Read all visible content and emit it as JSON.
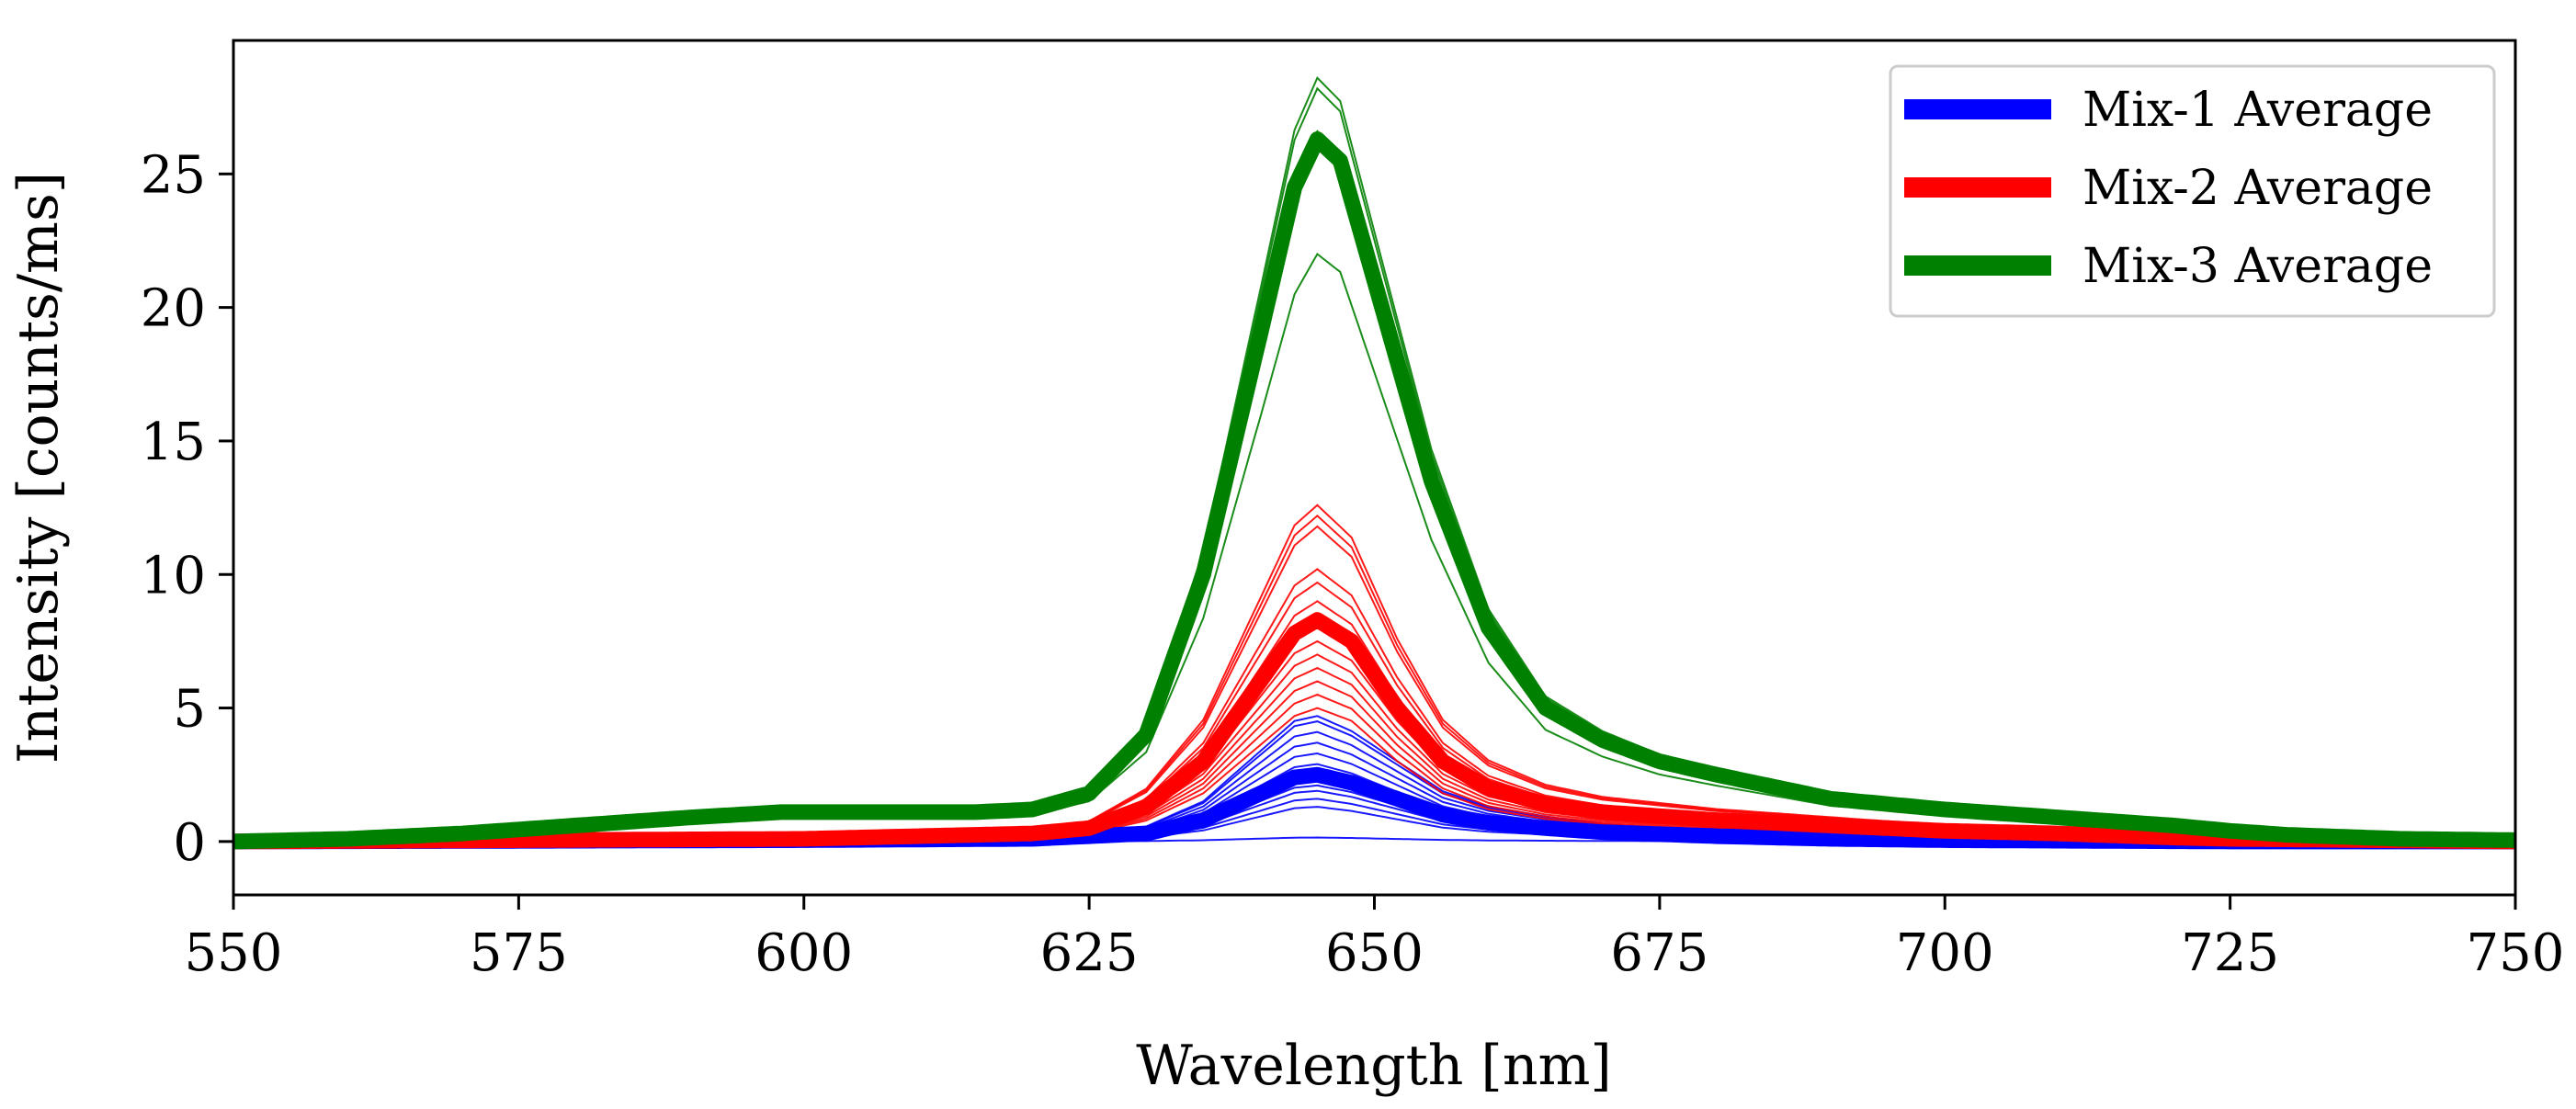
{
  "chart_data": {
    "type": "line",
    "xlabel": "Wavelength [nm]",
    "ylabel": "Intensity [counts/ms]",
    "xlim": [
      550,
      750
    ],
    "ylim": [
      -2,
      30
    ],
    "xticks": [
      550,
      575,
      600,
      625,
      650,
      675,
      700,
      725,
      750
    ],
    "yticks": [
      0,
      5,
      10,
      15,
      20,
      25
    ],
    "grid": false,
    "legend_position": "top-right",
    "colors": {
      "Mix-1": "#0000ff",
      "Mix-2": "#ff0000",
      "Mix-3": "#008000"
    },
    "series": [
      {
        "name": "Mix-1 Average",
        "color": "#0000ff",
        "x": [
          550,
          600,
          620,
          630,
          635,
          640,
          643,
          645,
          648,
          652,
          656,
          660,
          665,
          670,
          680,
          690,
          700,
          725,
          750
        ],
        "values": [
          0.0,
          0.05,
          0.1,
          0.3,
          0.8,
          1.8,
          2.4,
          2.5,
          2.2,
          1.6,
          1.0,
          0.7,
          0.5,
          0.35,
          0.2,
          0.1,
          0.05,
          0.0,
          0.0
        ]
      },
      {
        "name": "Mix-2 Average",
        "color": "#ff0000",
        "x": [
          550,
          600,
          620,
          625,
          630,
          635,
          640,
          643,
          645,
          648,
          652,
          656,
          660,
          665,
          670,
          680,
          690,
          700,
          710,
          720,
          725,
          750
        ],
        "values": [
          0.0,
          0.1,
          0.3,
          0.5,
          1.3,
          3.0,
          6.0,
          7.8,
          8.3,
          7.5,
          5.0,
          3.0,
          2.0,
          1.4,
          1.1,
          0.8,
          0.6,
          0.4,
          0.3,
          0.15,
          0.1,
          0.0
        ]
      },
      {
        "name": "Mix-3 Average",
        "color": "#008000",
        "x": [
          550,
          560,
          570,
          580,
          590,
          598,
          605,
          615,
          620,
          625,
          630,
          635,
          640,
          643,
          645,
          647,
          650,
          655,
          660,
          665,
          670,
          675,
          680,
          690,
          700,
          710,
          720,
          725,
          730,
          740,
          750
        ],
        "values": [
          0.0,
          0.1,
          0.3,
          0.6,
          0.9,
          1.1,
          1.1,
          1.1,
          1.2,
          1.8,
          4.0,
          10.0,
          19.0,
          24.5,
          26.3,
          25.5,
          21.0,
          13.5,
          8.0,
          5.0,
          3.8,
          3.0,
          2.5,
          1.6,
          1.2,
          0.9,
          0.6,
          0.4,
          0.25,
          0.1,
          0.05
        ]
      }
    ],
    "individual_scans": [
      {
        "series": "Mix-1",
        "peaks": [
          0.15,
          1.3,
          1.6,
          1.9,
          2.1,
          2.4,
          2.6,
          2.9,
          3.3,
          3.7,
          4.1,
          4.5,
          4.7
        ]
      },
      {
        "series": "Mix-2",
        "peaks": [
          5.0,
          5.5,
          6.0,
          6.5,
          7.0,
          7.5,
          8.0,
          8.5,
          9.0,
          9.7,
          10.2,
          11.8,
          12.2,
          12.6
        ]
      },
      {
        "series": "Mix-3",
        "peaks": [
          22.0,
          26.6,
          28.2,
          28.6
        ]
      }
    ]
  }
}
